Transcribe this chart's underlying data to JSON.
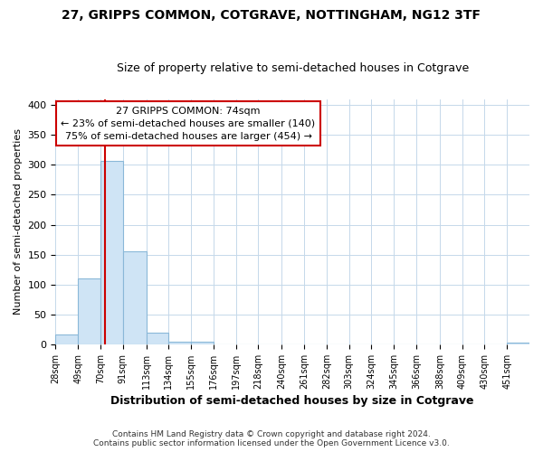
{
  "title": "27, GRIPPS COMMON, COTGRAVE, NOTTINGHAM, NG12 3TF",
  "subtitle": "Size of property relative to semi-detached houses in Cotgrave",
  "xlabel": "Distribution of semi-detached houses by size in Cotgrave",
  "ylabel": "Number of semi-detached properties",
  "footer_line1": "Contains HM Land Registry data © Crown copyright and database right 2024.",
  "footer_line2": "Contains public sector information licensed under the Open Government Licence v3.0.",
  "annotation_line1": "27 GRIPPS COMMON: 74sqm",
  "annotation_line2": "← 23% of semi-detached houses are smaller (140)",
  "annotation_line3": "75% of semi-detached houses are larger (454) →",
  "property_size": 74,
  "bar_color": "#cfe4f5",
  "bar_edge_color": "#8ab8d8",
  "redline_color": "#cc0000",
  "annotation_box_color": "#ffffff",
  "annotation_box_edge": "#cc0000",
  "background_color": "#ffffff",
  "grid_color": "#c5d8ea",
  "title_fontsize": 10,
  "subtitle_fontsize": 9,
  "categories": [
    "28sqm",
    "49sqm",
    "70sqm",
    "91sqm",
    "113sqm",
    "134sqm",
    "155sqm",
    "176sqm",
    "197sqm",
    "218sqm",
    "240sqm",
    "261sqm",
    "282sqm",
    "303sqm",
    "324sqm",
    "345sqm",
    "366sqm",
    "388sqm",
    "409sqm",
    "430sqm",
    "451sqm"
  ],
  "values": [
    16,
    110,
    306,
    156,
    20,
    5,
    4,
    0,
    0,
    0,
    0,
    0,
    0,
    0,
    0,
    0,
    0,
    0,
    0,
    0,
    3
  ],
  "bin_edges": [
    28,
    49,
    70,
    91,
    113,
    134,
    155,
    176,
    197,
    218,
    240,
    261,
    282,
    303,
    324,
    345,
    366,
    388,
    409,
    430,
    451,
    472
  ],
  "ylim": [
    0,
    410
  ],
  "yticks": [
    0,
    50,
    100,
    150,
    200,
    250,
    300,
    350,
    400
  ]
}
